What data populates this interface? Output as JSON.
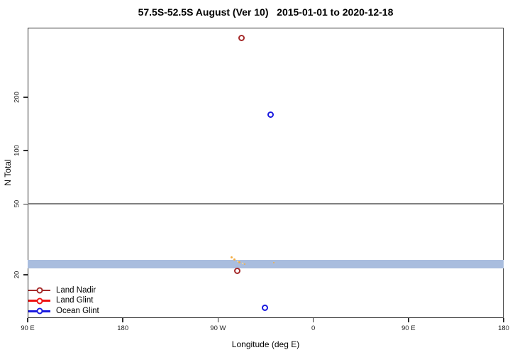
{
  "chart_data": {
    "type": "scatter",
    "title": "57.5S-52.5S August (Ver 10)   2015-01-01 to 2020-12-18",
    "xlabel": "Longitude (deg E)",
    "ylabel": "N Total",
    "y_scale": "log",
    "grid": false,
    "xlim": [
      90,
      540
    ],
    "ylim": [
      11.4,
      493
    ],
    "xticks": [
      {
        "value": 90,
        "label": "90 E"
      },
      {
        "value": 180,
        "label": "180"
      },
      {
        "value": 270,
        "label": "90 W"
      },
      {
        "value": 360,
        "label": "0"
      },
      {
        "value": 450,
        "label": "90 E"
      },
      {
        "value": 540,
        "label": "180"
      }
    ],
    "yticks": [
      {
        "value": 20,
        "label": "20"
      },
      {
        "value": 50,
        "label": "50"
      },
      {
        "value": 100,
        "label": "100"
      },
      {
        "value": 200,
        "label": "200"
      }
    ],
    "reference_line": {
      "y": 50,
      "color": "#808080"
    },
    "band": {
      "y_min": 21.7,
      "y_max": 24.3,
      "color": "#a9bdde",
      "extent": "full-width"
    },
    "series": [
      {
        "name": "Land Nadir",
        "color": "#A52A2A",
        "marker": "open-circle",
        "points": [
          {
            "x": 292.5,
            "y": 430
          },
          {
            "x": 288.5,
            "y": 21
          }
        ]
      },
      {
        "name": "Land Glint",
        "color": "#EE1111",
        "marker": "open-circle",
        "points": []
      },
      {
        "name": "Ocean Glint",
        "color": "#1A1ADF",
        "marker": "open-circle",
        "points": [
          {
            "x": 320,
            "y": 160
          },
          {
            "x": 314,
            "y": 13
          }
        ]
      }
    ],
    "unlabeled_cluster": {
      "color": "#F3AE45",
      "marker": "small-dot",
      "points": [
        {
          "x": 282.5,
          "y": 25.0,
          "size": 3
        },
        {
          "x": 285.8,
          "y": 24.3,
          "size": 3
        },
        {
          "x": 288.5,
          "y": 23.8,
          "size": 2,
          "color": "#FFD98C"
        },
        {
          "x": 290.5,
          "y": 23.4,
          "size": 3
        },
        {
          "x": 293.2,
          "y": 23.2,
          "size": 2,
          "color": "#FFD98C"
        },
        {
          "x": 295.2,
          "y": 23.0,
          "size": 2
        },
        {
          "x": 322.7,
          "y": 23.4,
          "size": 2
        }
      ]
    },
    "legend": {
      "position": "bottom-left-inside",
      "entries": [
        {
          "label": "Land Nadir",
          "color": "#A52A2A"
        },
        {
          "label": "Land Glint",
          "color": "#EE1111"
        },
        {
          "label": "Ocean Glint",
          "color": "#1A1ADF"
        }
      ]
    }
  }
}
